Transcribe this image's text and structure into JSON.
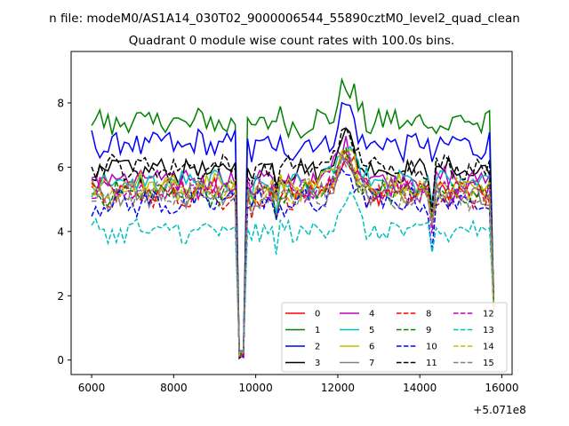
{
  "chart_data": {
    "type": "line",
    "suptitle": "n file: modeM0/AS1A14_030T02_9000006544_55890cztM0_level2_quad_clean",
    "title": "Quadrant 0 module wise count rates with 100.0s bins.",
    "xlabel": "",
    "ylabel": "",
    "x_offset_label": "+5.071e8",
    "xlim": [
      5500,
      16250
    ],
    "ylim": [
      -0.45,
      9.6
    ],
    "x_ticks": [
      {
        "value": 6000,
        "label": "6000"
      },
      {
        "value": 8000,
        "label": "8000"
      },
      {
        "value": 10000,
        "label": "10000"
      },
      {
        "value": 12000,
        "label": "12000"
      },
      {
        "value": 14000,
        "label": "14000"
      },
      {
        "value": 16000,
        "label": "16000"
      }
    ],
    "y_ticks": [
      {
        "value": 0,
        "label": "0"
      },
      {
        "value": 2,
        "label": "2"
      },
      {
        "value": 4,
        "label": "4"
      },
      {
        "value": 6,
        "label": "6"
      },
      {
        "value": 8,
        "label": "8"
      }
    ],
    "grid": false,
    "legend_position": "lower-right",
    "legend_columns": 4,
    "x": {
      "start": 6000,
      "end": 15800,
      "step": 100
    },
    "series": [
      {
        "name": "0",
        "color": "#ff0000",
        "dash": "solid",
        "base": 5.3,
        "amp": 0.35
      },
      {
        "name": "1",
        "color": "#008000",
        "dash": "solid",
        "base": 7.4,
        "amp": 0.45
      },
      {
        "name": "2",
        "color": "#0000ff",
        "dash": "solid",
        "base": 6.7,
        "amp": 0.4
      },
      {
        "name": "3",
        "color": "#000000",
        "dash": "solid",
        "base": 5.9,
        "amp": 0.3
      },
      {
        "name": "4",
        "color": "#bf00bf",
        "dash": "solid",
        "base": 5.6,
        "amp": 0.35
      },
      {
        "name": "5",
        "color": "#00bfbf",
        "dash": "solid",
        "base": 5.5,
        "amp": 0.3
      },
      {
        "name": "6",
        "color": "#bfbf00",
        "dash": "solid",
        "base": 5.4,
        "amp": 0.35
      },
      {
        "name": "7",
        "color": "#808080",
        "dash": "solid",
        "base": 5.2,
        "amp": 0.35
      },
      {
        "name": "8",
        "color": "#ff0000",
        "dash": "dashed",
        "base": 5.1,
        "amp": 0.3
      },
      {
        "name": "9",
        "color": "#008000",
        "dash": "dashed",
        "base": 5.2,
        "amp": 0.3
      },
      {
        "name": "10",
        "color": "#0000ff",
        "dash": "dashed",
        "base": 4.9,
        "amp": 0.35
      },
      {
        "name": "11",
        "color": "#000000",
        "dash": "dashed",
        "base": 6.0,
        "amp": 0.3
      },
      {
        "name": "12",
        "color": "#bf00bf",
        "dash": "dashed",
        "base": 5.3,
        "amp": 0.3
      },
      {
        "name": "13",
        "color": "#00bfbf",
        "dash": "dashed",
        "base": 4.0,
        "amp": 0.35
      },
      {
        "name": "14",
        "color": "#bfbf00",
        "dash": "dashed",
        "base": 5.3,
        "amp": 0.3
      },
      {
        "name": "15",
        "color": "#808080",
        "dash": "dashed",
        "base": 5.1,
        "amp": 0.35
      }
    ],
    "features": {
      "dip": {
        "x": [
          9600,
          9700
        ],
        "level": 0.05
      },
      "bump": {
        "center": 12200,
        "width": 300,
        "height": 1.1
      },
      "dip2": {
        "x": 14300,
        "depth": 0.9
      },
      "end_drop_x": 15800
    }
  }
}
